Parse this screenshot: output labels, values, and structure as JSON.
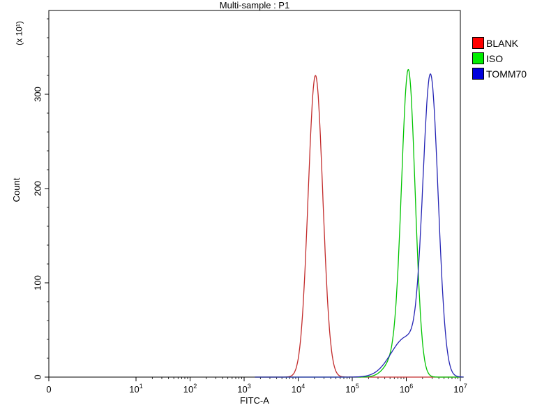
{
  "background": "#ffffff",
  "chart_data": {
    "type": "line",
    "subtype": "flow-cytometry-histogram",
    "title": "Multi-sample : P1",
    "xlabel": "FITC-A",
    "ylabel": "Count",
    "y_unit_label": "(x 10¹)",
    "x_scale": "log",
    "x_range_label": "0 to 10^7",
    "y_ticks": [
      0,
      100,
      200,
      300
    ],
    "y_minor_step": 20,
    "ylim": [
      0,
      389
    ],
    "grid": false,
    "legend_position": "top-right",
    "x_ticks": [
      {
        "text": "0",
        "exp": ""
      },
      {
        "text": "10",
        "exp": "1"
      },
      {
        "text": "10",
        "exp": "2"
      },
      {
        "text": "10",
        "exp": "3"
      },
      {
        "text": "10",
        "exp": "4"
      },
      {
        "text": "10",
        "exp": "5"
      },
      {
        "text": "10",
        "exp": "6"
      },
      {
        "text": "10",
        "exp": "7"
      }
    ],
    "series": [
      {
        "name": "BLANK",
        "color": "#c22b2b",
        "legend_color": "#ff0000",
        "peak_fitc": 21000,
        "peak_count": 320,
        "components": [
          {
            "mu": 4.32,
            "sigma": 0.135,
            "peak": 320
          }
        ]
      },
      {
        "name": "ISO",
        "color": "#00c400",
        "legend_color": "#00ee00",
        "peak_fitc": 1100000,
        "peak_count": 318,
        "components": [
          {
            "mu": 6.04,
            "sigma": 0.125,
            "peak": 318
          },
          {
            "mu": 5.8,
            "sigma": 0.18,
            "peak": 20
          }
        ]
      },
      {
        "name": "TOMM70",
        "color": "#2424b4",
        "legend_color": "#0000dd",
        "peak_fitc": 2800000,
        "peak_count": 314,
        "components": [
          {
            "mu": 6.45,
            "sigma": 0.14,
            "peak": 310
          },
          {
            "mu": 6.0,
            "sigma": 0.28,
            "peak": 42
          }
        ]
      }
    ]
  }
}
